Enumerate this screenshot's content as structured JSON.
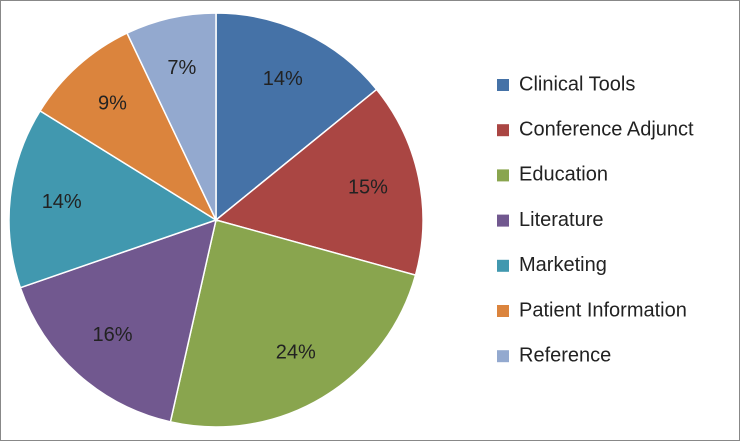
{
  "chart_data": {
    "type": "pie",
    "categories": [
      "Clinical Tools",
      "Conference Adjunct",
      "Education",
      "Literature",
      "Marketing",
      "Patient Information",
      "Reference"
    ],
    "values": [
      14,
      15,
      24,
      16,
      14,
      9,
      7
    ],
    "value_labels": [
      "14%",
      "15%",
      "24%",
      "16%",
      "14%",
      "9%",
      "7%"
    ],
    "colors": [
      "#4572a7",
      "#aa4643",
      "#89a54e",
      "#71588f",
      "#4198af",
      "#db843d",
      "#93a9cf"
    ],
    "legend": "right"
  }
}
